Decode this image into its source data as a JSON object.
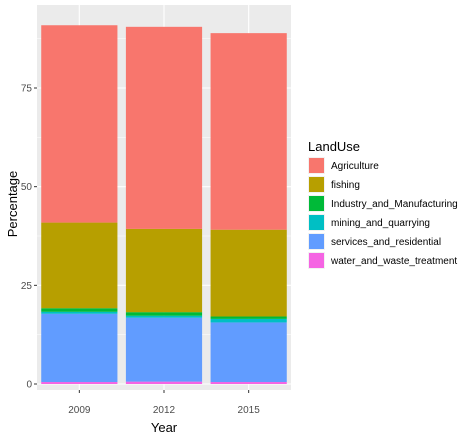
{
  "chart_data": {
    "type": "bar",
    "stacked": true,
    "title": "",
    "xlabel": "Year",
    "ylabel": "Percentage",
    "categories": [
      "2009",
      "2012",
      "2015"
    ],
    "ylim": [
      0,
      91
    ],
    "yticks": [
      0,
      25,
      50,
      75
    ],
    "grid": true,
    "legend_title": "LandUse",
    "legend_position": "right",
    "series": [
      {
        "name": "water_and_waste_treatment",
        "color": "#F564E3",
        "values": [
          0.5,
          0.6,
          0.5
        ]
      },
      {
        "name": "services_and_residential",
        "color": "#619CFF",
        "values": [
          17.3,
          16.2,
          15.1
        ]
      },
      {
        "name": "mining_and_quarrying",
        "color": "#00BFC4",
        "values": [
          0.5,
          0.5,
          0.9
        ]
      },
      {
        "name": "Industry_and_Manufacturing",
        "color": "#00BA38",
        "values": [
          0.9,
          0.9,
          0.6
        ]
      },
      {
        "name": "fishing",
        "color": "#B79F00",
        "values": [
          21.7,
          21.1,
          22.0
        ]
      },
      {
        "name": "Agriculture",
        "color": "#F8766D",
        "values": [
          50.0,
          51.2,
          49.8
        ]
      }
    ],
    "legend_order": [
      "Agriculture",
      "fishing",
      "Industry_and_Manufacturing",
      "mining_and_quarrying",
      "services_and_residential",
      "water_and_waste_treatment"
    ],
    "panel_color": "#EBEBEB",
    "grid_color": "#FFFFFF"
  }
}
